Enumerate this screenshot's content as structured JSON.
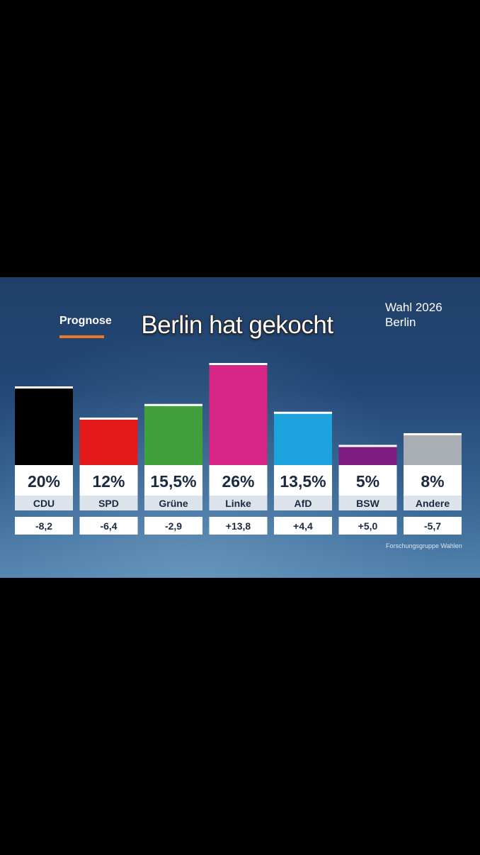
{
  "overlay": {
    "caption": "Berlin hat gekocht"
  },
  "header": {
    "label": "Prognose",
    "title_line1": "Wahl 2026",
    "title_line2": "Berlin"
  },
  "footer": {
    "source": "Forschungsgruppe Wahlen"
  },
  "colors": {
    "accent": "#e8782a",
    "CDU": "#000000",
    "SPD": "#e3191b",
    "Grüne": "#40a03c",
    "Linke": "#d72585",
    "AfD": "#1ca2dc",
    "BSW": "#7f1c82",
    "Andere": "#a9adb4"
  },
  "chart_data": {
    "type": "bar",
    "title": "Prognose",
    "categories": [
      "CDU",
      "SPD",
      "Grüne",
      "Linke",
      "AfD",
      "BSW",
      "Andere"
    ],
    "values": [
      20,
      12,
      15.5,
      26,
      13.5,
      5,
      8
    ],
    "value_labels": [
      "20%",
      "12%",
      "15,5%",
      "26%",
      "13,5%",
      "5%",
      "8%"
    ],
    "changes": [
      -8.2,
      -6.4,
      -2.9,
      13.8,
      4.4,
      5.0,
      -5.7
    ],
    "change_labels": [
      "-8,2",
      "-6,4",
      "-2,9",
      "+13,8",
      "+4,4",
      "+5,0",
      "-5,7"
    ],
    "ylim": [
      0,
      26
    ],
    "xlabel": "",
    "ylabel": "",
    "grid": false,
    "legend": "none"
  }
}
